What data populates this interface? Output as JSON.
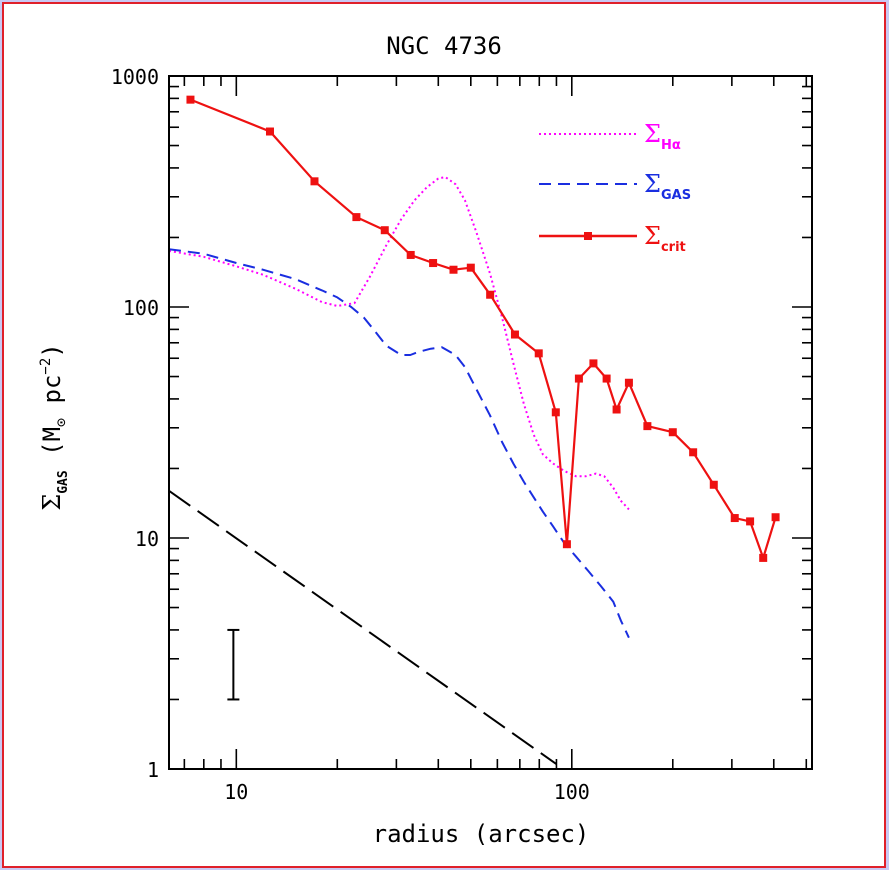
{
  "chart_data": {
    "type": "line",
    "title": "NGC 4736",
    "xlabel": "radius (arcsec)",
    "ylabel": {
      "symbol": "Σ",
      "subscript": "GAS",
      "units_open": " (M",
      "sun_symbol": "⊙",
      "units_mid": " pc",
      "units_exp": "−2",
      "units_close": ")"
    },
    "x_scale": "log",
    "y_scale": "log",
    "xlim": [
      6.3,
      520
    ],
    "ylim": [
      1,
      1000
    ],
    "x_tick_labels": [
      {
        "value": 10,
        "label": "10"
      },
      {
        "value": 100,
        "label": "100"
      }
    ],
    "y_tick_labels": [
      {
        "value": 1,
        "label": "1"
      },
      {
        "value": 10,
        "label": "10"
      },
      {
        "value": 100,
        "label": "100"
      },
      {
        "value": 1000,
        "label": "1000"
      }
    ],
    "grid": false,
    "legend_position": "top-right",
    "series": [
      {
        "name": "Σ_Hα",
        "symbol": "Σ",
        "subscript": "Hα",
        "color": "#ff00ff",
        "style": "dotted",
        "markers": false,
        "points": [
          [
            6.3,
            175
          ],
          [
            8,
            165
          ],
          [
            10,
            150
          ],
          [
            12,
            138
          ],
          [
            15,
            120
          ],
          [
            18,
            105
          ],
          [
            20,
            101
          ],
          [
            22.5,
            104
          ],
          [
            25,
            135
          ],
          [
            28,
            185
          ],
          [
            31,
            240
          ],
          [
            34,
            290
          ],
          [
            37,
            330
          ],
          [
            40,
            360
          ],
          [
            42,
            365
          ],
          [
            45,
            340
          ],
          [
            48,
            290
          ],
          [
            52,
            210
          ],
          [
            57,
            140
          ],
          [
            62,
            90
          ],
          [
            67,
            57
          ],
          [
            72,
            38
          ],
          [
            77,
            28
          ],
          [
            82,
            23
          ],
          [
            88,
            21
          ],
          [
            95,
            19.5
          ],
          [
            103,
            18.5
          ],
          [
            110,
            18.5
          ],
          [
            118,
            19
          ],
          [
            125,
            18.5
          ],
          [
            133,
            16.5
          ],
          [
            140,
            14.5
          ],
          [
            148,
            13.3
          ]
        ]
      },
      {
        "name": "Σ_GAS",
        "symbol": "Σ",
        "subscript": "GAS",
        "color": "#1a2ee0",
        "style": "dashed",
        "markers": false,
        "points": [
          [
            6.3,
            178
          ],
          [
            8,
            170
          ],
          [
            10,
            155
          ],
          [
            12,
            145
          ],
          [
            15,
            132
          ],
          [
            18,
            118
          ],
          [
            20,
            110
          ],
          [
            22,
            100
          ],
          [
            24,
            90
          ],
          [
            26,
            78
          ],
          [
            28,
            68
          ],
          [
            31,
            62
          ],
          [
            33,
            62
          ],
          [
            35,
            64
          ],
          [
            38,
            66
          ],
          [
            41,
            67
          ],
          [
            45,
            62
          ],
          [
            48,
            55
          ],
          [
            52,
            44
          ],
          [
            57,
            34
          ],
          [
            62,
            26
          ],
          [
            67,
            21
          ],
          [
            72,
            17.5
          ],
          [
            77,
            15
          ],
          [
            82,
            13
          ],
          [
            88,
            11.2
          ],
          [
            95,
            9.5
          ],
          [
            103,
            8.3
          ],
          [
            112,
            7.2
          ],
          [
            122,
            6.2
          ],
          [
            133,
            5.3
          ],
          [
            140,
            4.4
          ],
          [
            148,
            3.7
          ]
        ]
      },
      {
        "name": "Σ_crit",
        "symbol": "Σ",
        "subscript": "crit",
        "color": "#ee1111",
        "style": "solid",
        "markers": true,
        "points": [
          [
            7.3,
            790
          ],
          [
            12.6,
            575
          ],
          [
            17.1,
            350
          ],
          [
            22.8,
            245
          ],
          [
            27.7,
            215
          ],
          [
            33.1,
            168
          ],
          [
            38.6,
            155
          ],
          [
            44.4,
            145
          ],
          [
            50,
            148
          ],
          [
            57.1,
            113
          ],
          [
            67.7,
            76
          ],
          [
            79.7,
            63
          ],
          [
            89.6,
            35
          ],
          [
            96.7,
            9.4
          ],
          [
            105,
            49
          ],
          [
            116,
            57
          ],
          [
            127,
            49
          ],
          [
            136,
            36
          ],
          [
            148,
            47
          ],
          [
            168,
            30.5
          ],
          [
            200,
            28.7
          ],
          [
            230,
            23.5
          ],
          [
            265,
            17
          ],
          [
            306,
            12.2
          ],
          [
            340,
            11.8
          ],
          [
            372,
            8.2
          ],
          [
            405,
            12.3
          ]
        ]
      }
    ],
    "annotations": {
      "power_law_line": {
        "color": "#000000",
        "style": "long-dash",
        "points": [
          [
            6.3,
            16
          ],
          [
            90,
            1.05
          ]
        ]
      },
      "error_bar": {
        "x": 9.8,
        "y_low": 2.0,
        "y_high": 4.0
      }
    }
  }
}
